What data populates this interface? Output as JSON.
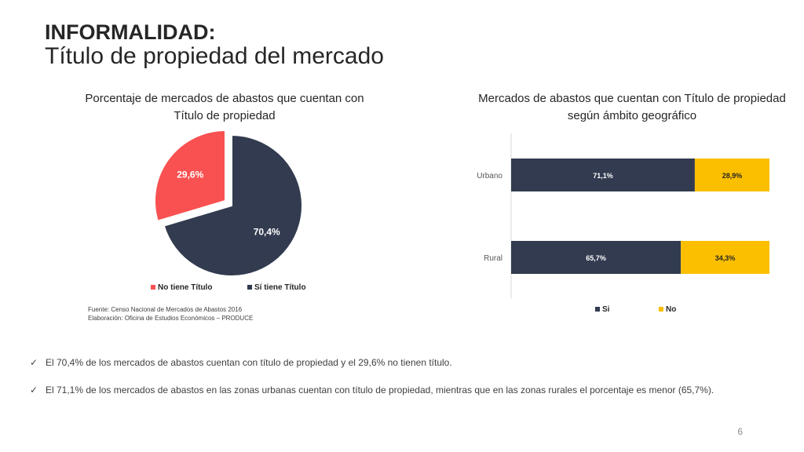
{
  "header": {
    "title_bold": "INFORMALIDAD:",
    "title_sub": "Título de propiedad del mercado"
  },
  "chart_data": [
    {
      "type": "pie",
      "title": "Porcentaje de mercados de abastos que cuentan con Título de propiedad",
      "categories": [
        "No tiene Título",
        "Sí tiene Título"
      ],
      "values": [
        29.6,
        70.4
      ],
      "value_labels": [
        "29,6%",
        "70,4%"
      ],
      "colors": [
        "#f95151",
        "#323b4f"
      ],
      "legend_position": "bottom"
    },
    {
      "type": "bar",
      "orientation": "horizontal",
      "stacked": true,
      "title": "Mercados de abastos que cuentan con Título de propiedad según ámbito geográfico",
      "categories": [
        "Urbano",
        "Rural"
      ],
      "series": [
        {
          "name": "Si",
          "values": [
            71.1,
            65.7
          ],
          "labels": [
            "71,1%",
            "65,7%"
          ],
          "color": "#323b4f"
        },
        {
          "name": "No",
          "values": [
            28.9,
            34.3
          ],
          "labels": [
            "28,9%",
            "34,3%"
          ],
          "color": "#fbbf00"
        }
      ],
      "xlim": [
        0,
        100
      ],
      "legend_position": "bottom"
    }
  ],
  "source": {
    "line1": "Fuente: Censo Nacional de Mercados de Abastos 2016",
    "line2": "Elaboración: Oficina de Estudios Económicos – PRODUCE"
  },
  "bullets": [
    "El 70,4% de los mercados de abastos cuentan con título de propiedad y el 29,6% no tienen título.",
    "El 71,1% de los mercados de abastos en las zonas urbanas cuentan con título de propiedad, mientras que en las zonas rurales el porcentaje es menor (65,7%)."
  ],
  "check_icon": "✓",
  "page_number": "6"
}
